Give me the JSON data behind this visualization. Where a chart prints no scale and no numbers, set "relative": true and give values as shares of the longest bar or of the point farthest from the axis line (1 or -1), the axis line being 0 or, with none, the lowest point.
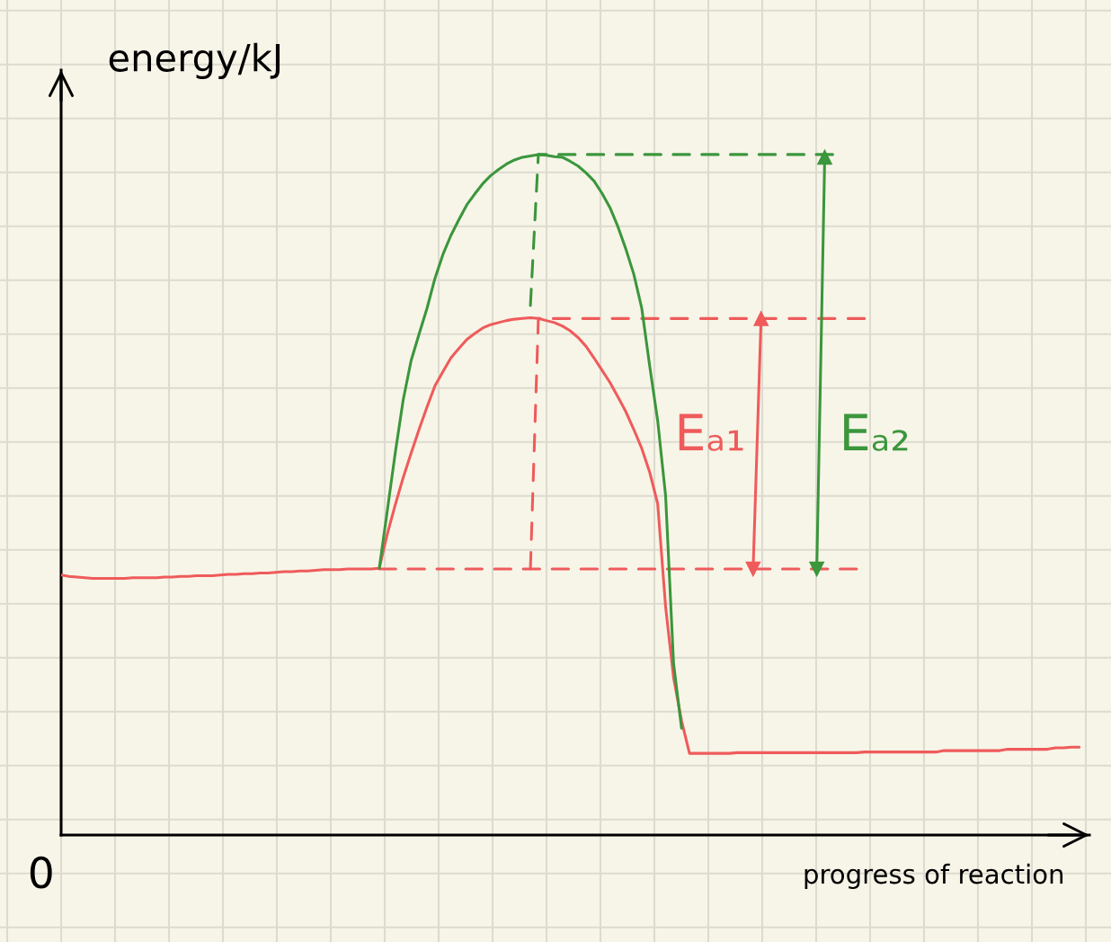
{
  "chart_data": {
    "type": "line",
    "relative": true,
    "grid": true,
    "tick_labels": false,
    "xlabel": "progress of reaction",
    "ylabel": "energy/kJ",
    "annotations": [
      "0"
    ],
    "categories": [
      null,
      null,
      null,
      null,
      null,
      null,
      null,
      null,
      null,
      null,
      null,
      null,
      null,
      null,
      null,
      null,
      null,
      null,
      null,
      null,
      null,
      null,
      null,
      null,
      null,
      null,
      null,
      null,
      null,
      null,
      null,
      null,
      null,
      null,
      null,
      null,
      null,
      null,
      null,
      null,
      null,
      null,
      null,
      null,
      null,
      null,
      null,
      null,
      null,
      null,
      null,
      null,
      null,
      null,
      null,
      null,
      null,
      null,
      null,
      null,
      null,
      null,
      null,
      null,
      null,
      null,
      null,
      null,
      null,
      null,
      null,
      null,
      null,
      null,
      null,
      null,
      null,
      null,
      null,
      null,
      null,
      null,
      null,
      null,
      null,
      null,
      null,
      null,
      null,
      null,
      null,
      null,
      null,
      null,
      null,
      null,
      null,
      null,
      null,
      null,
      null,
      null,
      null,
      null,
      null,
      null,
      null,
      null,
      null,
      null,
      null,
      null,
      null,
      null,
      null,
      null,
      null,
      null,
      null,
      null,
      null,
      null,
      null,
      null,
      null,
      null,
      null,
      null,
      null
    ],
    "series": [
      {
        "color": "#ef5b5b",
        "values": [
          0.382,
          0.38,
          0.379,
          0.378,
          0.377,
          0.377,
          0.377,
          0.377,
          0.377,
          0.378,
          0.378,
          0.378,
          0.378,
          0.379,
          0.379,
          0.38,
          0.38,
          0.381,
          0.381,
          0.381,
          0.382,
          0.383,
          0.383,
          0.384,
          0.384,
          0.385,
          0.385,
          0.386,
          0.387,
          0.387,
          0.388,
          0.388,
          0.389,
          0.39,
          0.39,
          0.39,
          0.391,
          0.391,
          0.391,
          0.391,
          0.392,
          0.442,
          0.485,
          0.525,
          0.561,
          0.596,
          0.629,
          0.66,
          0.681,
          0.701,
          0.715,
          0.728,
          0.737,
          0.745,
          0.75,
          0.753,
          0.756,
          0.758,
          0.759,
          0.76,
          0.759,
          0.756,
          0.753,
          0.748,
          0.741,
          0.731,
          0.718,
          0.701,
          0.683,
          0.665,
          0.644,
          0.622,
          0.596,
          0.568,
          0.533,
          0.487,
          0.335,
          0.231,
          0.168,
          0.12,
          0.12,
          0.12,
          0.12,
          0.12,
          0.12,
          0.121,
          0.121,
          0.121,
          0.121,
          0.121,
          0.121,
          0.121,
          0.121,
          0.121,
          0.121,
          0.121,
          0.121,
          0.121,
          0.121,
          0.121,
          0.121,
          0.122,
          0.122,
          0.122,
          0.122,
          0.122,
          0.122,
          0.122,
          0.122,
          0.122,
          0.122,
          0.124,
          0.124,
          0.124,
          0.124,
          0.124,
          0.124,
          0.124,
          0.124,
          0.126,
          0.126,
          0.126,
          0.126,
          0.126,
          0.126,
          0.128,
          0.128,
          0.129,
          0.129
        ]
      },
      {
        "color": "#3b963c",
        "values": [
          null,
          null,
          null,
          null,
          null,
          null,
          null,
          null,
          null,
          null,
          null,
          null,
          null,
          null,
          null,
          null,
          null,
          null,
          null,
          null,
          null,
          null,
          null,
          null,
          null,
          null,
          null,
          null,
          null,
          null,
          null,
          null,
          null,
          null,
          null,
          null,
          null,
          null,
          null,
          null,
          0.392,
          0.476,
          0.561,
          0.639,
          0.697,
          0.736,
          0.774,
          0.818,
          0.853,
          0.881,
          0.904,
          0.926,
          0.942,
          0.957,
          0.969,
          0.978,
          0.986,
          0.992,
          0.996,
          0.998,
          1.0,
          0.999,
          0.997,
          0.996,
          0.99,
          0.983,
          0.973,
          0.961,
          0.943,
          0.922,
          0.894,
          0.861,
          0.824,
          0.774,
          0.689,
          0.609,
          0.498,
          0.252,
          0.157,
          null,
          null,
          null,
          null,
          null,
          null,
          null,
          null,
          null,
          null,
          null,
          null,
          null,
          null,
          null,
          null,
          null,
          null,
          null,
          null,
          null,
          null,
          null,
          null,
          null,
          null,
          null,
          null,
          null,
          null,
          null,
          null,
          null,
          null,
          null,
          null,
          null,
          null,
          null,
          null,
          null,
          null,
          null,
          null,
          null,
          null,
          null,
          null,
          null,
          null
        ]
      },
      {
        "color": "#ef5b5b",
        "line_style": "dashed",
        "values": [
          null,
          null,
          null,
          null,
          null,
          null,
          null,
          null,
          null,
          null,
          null,
          null,
          null,
          null,
          null,
          null,
          null,
          null,
          null,
          null,
          null,
          null,
          null,
          null,
          null,
          null,
          null,
          null,
          null,
          null,
          null,
          null,
          null,
          null,
          null,
          null,
          null,
          null,
          null,
          null,
          0.391,
          0.391,
          0.391,
          0.391,
          0.391,
          0.391,
          0.391,
          0.391,
          0.391,
          0.391,
          0.391,
          0.391,
          0.391,
          0.391,
          0.391,
          0.391,
          0.391,
          0.391,
          0.391,
          0.391,
          0.391,
          0.391,
          0.391,
          0.391,
          0.391,
          0.391,
          0.391,
          0.391,
          0.391,
          0.391,
          0.391,
          0.391,
          0.391,
          0.391,
          0.391,
          0.391,
          0.391,
          0.391,
          0.391,
          0.391,
          0.391,
          0.391,
          0.391,
          0.391,
          0.391,
          0.391,
          0.391,
          0.391,
          0.391,
          0.391,
          0.391,
          0.391,
          0.391,
          0.391,
          0.391,
          0.391,
          0.391,
          0.391,
          0.391,
          0.391,
          0.391,
          null,
          null,
          null,
          null,
          null,
          null,
          null,
          null,
          null,
          null,
          null,
          null,
          null,
          null,
          null,
          null,
          null,
          null,
          null,
          null,
          null,
          null,
          null,
          null,
          null,
          null,
          null,
          null
        ]
      },
      {
        "color": "#ef5b5b",
        "line_style": "dashed",
        "values": [
          null,
          null,
          null,
          null,
          null,
          null,
          null,
          null,
          null,
          null,
          null,
          null,
          null,
          null,
          null,
          null,
          null,
          null,
          null,
          null,
          null,
          null,
          null,
          null,
          null,
          null,
          null,
          null,
          null,
          null,
          null,
          null,
          null,
          null,
          null,
          null,
          null,
          null,
          null,
          null,
          null,
          null,
          null,
          null,
          null,
          null,
          null,
          null,
          null,
          null,
          null,
          null,
          null,
          null,
          null,
          null,
          null,
          null,
          null,
          0.391,
          0.759,
          0.759,
          0.759,
          0.759,
          0.759,
          0.759,
          0.759,
          0.759,
          0.759,
          0.759,
          0.759,
          0.759,
          0.759,
          0.759,
          0.759,
          0.759,
          0.759,
          0.759,
          0.759,
          0.759,
          0.759,
          0.759,
          0.759,
          0.759,
          0.759,
          0.759,
          0.759,
          0.759,
          0.759,
          0.759,
          0.759,
          0.759,
          0.759,
          0.759,
          0.759,
          0.759,
          0.759,
          0.759,
          0.759,
          0.759,
          0.759,
          0.759,
          null,
          null,
          null,
          null,
          null,
          null,
          null,
          null,
          null,
          null,
          null,
          null,
          null,
          null,
          null,
          null,
          null,
          null,
          null,
          null,
          null,
          null,
          null,
          null,
          null,
          null,
          null
        ]
      },
      {
        "color": "#3b963c",
        "line_style": "dashed",
        "values": [
          null,
          null,
          null,
          null,
          null,
          null,
          null,
          null,
          null,
          null,
          null,
          null,
          null,
          null,
          null,
          null,
          null,
          null,
          null,
          null,
          null,
          null,
          null,
          null,
          null,
          null,
          null,
          null,
          null,
          null,
          null,
          null,
          null,
          null,
          null,
          null,
          null,
          null,
          null,
          null,
          null,
          null,
          null,
          null,
          null,
          null,
          null,
          null,
          null,
          null,
          null,
          null,
          null,
          null,
          null,
          null,
          null,
          null,
          null,
          0.778,
          1.0,
          1.0,
          1.0,
          1.0,
          1.0,
          1.0,
          1.0,
          1.0,
          1.0,
          1.0,
          1.0,
          1.0,
          1.0,
          1.0,
          1.0,
          1.0,
          1.0,
          1.0,
          1.0,
          1.0,
          1.0,
          1.0,
          1.0,
          1.0,
          1.0,
          1.0,
          1.0,
          1.0,
          1.0,
          1.0,
          1.0,
          1.0,
          1.0,
          1.0,
          1.0,
          1.0,
          1.0,
          1.0,
          null,
          null,
          null,
          null,
          null,
          null,
          null,
          null,
          null,
          null,
          null,
          null,
          null,
          null,
          null,
          null,
          null,
          null,
          null,
          null,
          null,
          null,
          null,
          null,
          null,
          null,
          null,
          null,
          null,
          null,
          null
        ]
      },
      {
        "name": "Eₐ₁",
        "color": "#ef5b5b",
        "marker": "triangle",
        "values": [
          null,
          null,
          null,
          null,
          null,
          null,
          null,
          null,
          null,
          null,
          null,
          null,
          null,
          null,
          null,
          null,
          null,
          null,
          null,
          null,
          null,
          null,
          null,
          null,
          null,
          null,
          null,
          null,
          null,
          null,
          null,
          null,
          null,
          null,
          null,
          null,
          null,
          null,
          null,
          null,
          null,
          null,
          null,
          null,
          null,
          null,
          null,
          null,
          null,
          null,
          null,
          null,
          null,
          null,
          null,
          null,
          null,
          null,
          null,
          null,
          null,
          null,
          null,
          null,
          null,
          null,
          null,
          null,
          null,
          null,
          null,
          null,
          null,
          null,
          null,
          null,
          null,
          null,
          null,
          null,
          null,
          null,
          null,
          null,
          null,
          null,
          null,
          0.391,
          0.759,
          null,
          null,
          null,
          null,
          null,
          null,
          null,
          null,
          null,
          null,
          null,
          null,
          null,
          null,
          null,
          null,
          null,
          null,
          null,
          null,
          null,
          null,
          null,
          null,
          null,
          null,
          null,
          null,
          null,
          null,
          null,
          null,
          null,
          null,
          null,
          null,
          null,
          null,
          null,
          null
        ]
      },
      {
        "name": "Eₐ₂",
        "color": "#3b963c",
        "marker": "triangle",
        "values": [
          null,
          null,
          null,
          null,
          null,
          null,
          null,
          null,
          null,
          null,
          null,
          null,
          null,
          null,
          null,
          null,
          null,
          null,
          null,
          null,
          null,
          null,
          null,
          null,
          null,
          null,
          null,
          null,
          null,
          null,
          null,
          null,
          null,
          null,
          null,
          null,
          null,
          null,
          null,
          null,
          null,
          null,
          null,
          null,
          null,
          null,
          null,
          null,
          null,
          null,
          null,
          null,
          null,
          null,
          null,
          null,
          null,
          null,
          null,
          null,
          null,
          null,
          null,
          null,
          null,
          null,
          null,
          null,
          null,
          null,
          null,
          null,
          null,
          null,
          null,
          null,
          null,
          null,
          null,
          null,
          null,
          null,
          null,
          null,
          null,
          null,
          null,
          null,
          null,
          null,
          null,
          null,
          null,
          null,
          null,
          0.391,
          0.996,
          null,
          null,
          null,
          null,
          null,
          null,
          null,
          null,
          null,
          null,
          null,
          null,
          null,
          null,
          null,
          null,
          null,
          null,
          null,
          null,
          null,
          null,
          null,
          null,
          null,
          null,
          null,
          null,
          null,
          null,
          null,
          null
        ]
      }
    ]
  }
}
